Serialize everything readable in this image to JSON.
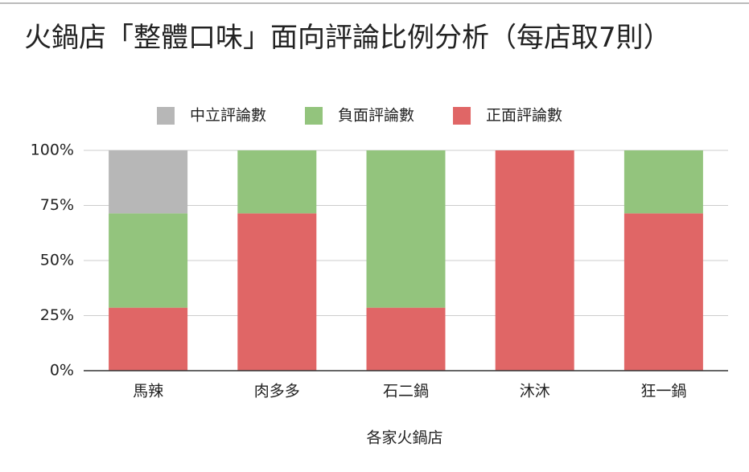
{
  "chart_data": {
    "type": "stacked_bar",
    "title": "火鍋店「整體口味」面向評論比例分析（每店取7則）",
    "x_label": "各家火鍋店",
    "categories": [
      "馬辣",
      "肉多多",
      "石二鍋",
      "沐沐",
      "狂一鍋"
    ],
    "series": [
      {
        "name": "中立評論數",
        "color": "#b7b7b7",
        "values": [
          28.6,
          0,
          0,
          0,
          0
        ]
      },
      {
        "name": "負面評論數",
        "color": "#93c47d",
        "values": [
          42.8,
          28.6,
          71.4,
          0,
          28.6
        ]
      },
      {
        "name": "正面評論數",
        "color": "#e06666",
        "values": [
          28.6,
          71.4,
          28.6,
          100,
          71.4
        ]
      }
    ],
    "ylim": [
      0,
      100
    ],
    "yticks": [
      {
        "value": 0,
        "label": "0%"
      },
      {
        "value": 25,
        "label": "25%"
      },
      {
        "value": 50,
        "label": "50%"
      },
      {
        "value": 75,
        "label": "75%"
      },
      {
        "value": 100,
        "label": "100%"
      }
    ],
    "grid": true,
    "legend": "top"
  }
}
